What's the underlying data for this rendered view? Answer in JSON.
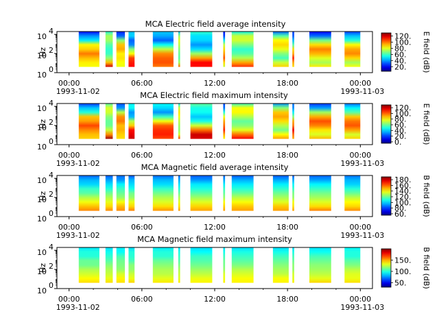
{
  "figure": {
    "x_ticks": [
      "00:00",
      "06:00",
      "12:00",
      "18:00",
      "00:00"
    ],
    "x_tick_hours": [
      0,
      6,
      12,
      18,
      24
    ],
    "x_minor_hours": [
      2,
      4,
      8,
      10,
      14,
      16,
      20,
      22
    ],
    "date_start": "1993-11-02",
    "date_end": "1993-11-03",
    "xlim_hours": [
      -1,
      25
    ]
  },
  "chart_data": [
    {
      "type": "heatmap",
      "title": "MCA  Electric field average intensity",
      "ylabel": "Hz",
      "y_ticks": [
        "10",
        "10",
        "10"
      ],
      "y_tick_exponents": [
        "0",
        "2",
        "4"
      ],
      "y_tick_powers": [
        0,
        2,
        4
      ],
      "ylim_log10": [
        0,
        4.3
      ],
      "colorbar_label": "E field (dB)",
      "colorbar_ticks": [
        "20.",
        "40.",
        "60.",
        "80.",
        "100.",
        "120."
      ],
      "colorbar_tick_values": [
        20,
        40,
        60,
        80,
        100,
        120
      ],
      "colorbar_range": [
        5,
        130
      ],
      "style": "electric-average"
    },
    {
      "type": "heatmap",
      "title": "MCA  Electric field maximum intensity",
      "ylabel": "Hz",
      "y_ticks": [
        "10",
        "10",
        "10"
      ],
      "y_tick_exponents": [
        "0",
        "2",
        "4"
      ],
      "y_tick_powers": [
        0,
        2,
        4
      ],
      "ylim_log10": [
        0,
        4.3
      ],
      "colorbar_label": "E field (dB)",
      "colorbar_ticks": [
        "0.",
        "20.",
        "40.",
        "60.",
        "80.",
        "100.",
        "120."
      ],
      "colorbar_tick_values": [
        0,
        20,
        40,
        60,
        80,
        100,
        120
      ],
      "colorbar_range": [
        -5,
        130
      ],
      "style": "electric-maximum"
    },
    {
      "type": "heatmap",
      "title": "MCA  Magnetic field average intensity",
      "ylabel": "Hz",
      "y_ticks": [
        "10",
        "10",
        "10"
      ],
      "y_tick_exponents": [
        "0",
        "2",
        "4"
      ],
      "y_tick_powers": [
        0,
        2,
        4
      ],
      "ylim_log10": [
        0,
        4.3
      ],
      "colorbar_label": "B field (dB)",
      "colorbar_ticks": [
        "60.",
        "80.",
        "100.",
        "120.",
        "140.",
        "160.",
        "180."
      ],
      "colorbar_tick_values": [
        60,
        80,
        100,
        120,
        140,
        160,
        180
      ],
      "colorbar_range": [
        55,
        190
      ],
      "style": "magnetic-average"
    },
    {
      "type": "heatmap",
      "title": "MCA  Magnetic field maximum intensity",
      "ylabel": "Hz",
      "y_ticks": [
        "10",
        "10",
        "10"
      ],
      "y_tick_exponents": [
        "0",
        "2",
        "4"
      ],
      "y_tick_powers": [
        0,
        2,
        4
      ],
      "ylim_log10": [
        0,
        4.3
      ],
      "colorbar_label": "B field (dB)",
      "colorbar_ticks": [
        "50.",
        "100.",
        "150."
      ],
      "colorbar_tick_values": [
        50,
        100,
        150
      ],
      "colorbar_range": [
        30,
        200
      ],
      "style": "magnetic-maximum"
    }
  ],
  "data_segments_hours": [
    [
      0.8,
      2.5
    ],
    [
      3.0,
      3.6
    ],
    [
      3.9,
      4.6
    ],
    [
      4.9,
      5.4
    ],
    [
      6.9,
      8.6
    ],
    [
      9.0,
      9.15
    ],
    [
      10.0,
      11.8
    ],
    [
      12.7,
      12.85
    ],
    [
      13.4,
      15.2
    ],
    [
      16.8,
      18.1
    ],
    [
      18.4,
      18.55
    ],
    [
      19.8,
      21.6
    ],
    [
      22.7,
      24.0
    ]
  ]
}
